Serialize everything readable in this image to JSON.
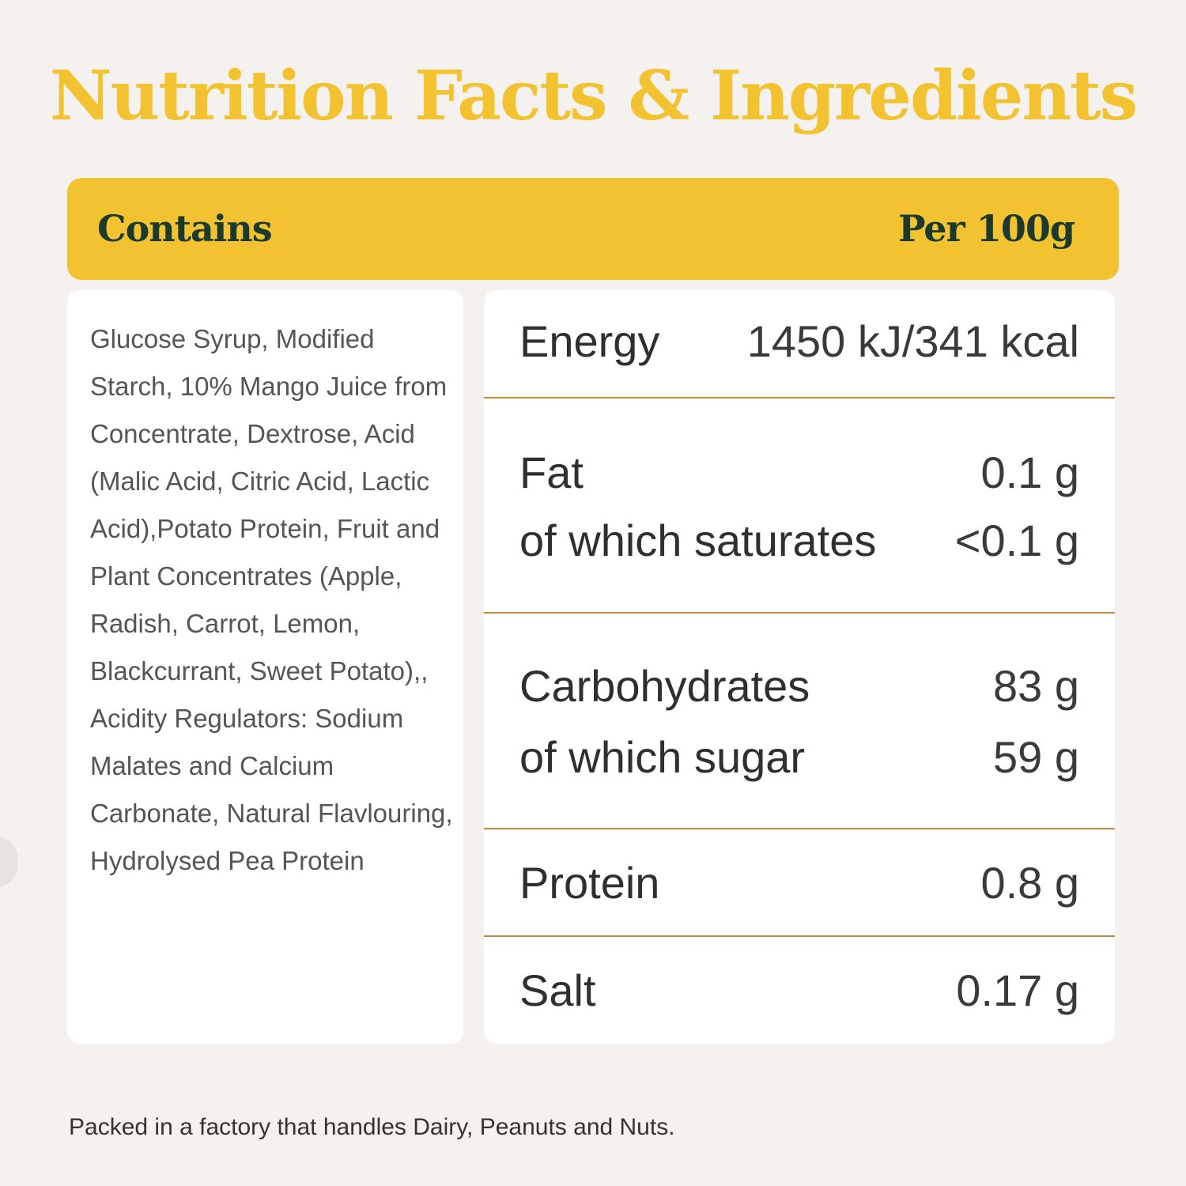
{
  "title": "Nutrition Facts & Ingredients",
  "header": {
    "left": "Contains",
    "right": "Per 100g"
  },
  "ingredients": "Glucose Syrup,  Modified Starch, 10% Mango Juice from Concentrate, Dextrose, Acid (Malic Acid, Citric Acid, Lactic Acid),Potato Protein, Fruit and Plant Concentrates (Apple, Radish, Carrot, Lemon, Blackcurrant, Sweet Potato),, Acidity Regulators: Sodium Malates and Calcium Carbonate, Natural Flavlouring, Hydrolysed Pea Protein",
  "nutrition": {
    "energy": {
      "label": "Energy",
      "value": "1450 kJ/341 kcal"
    },
    "fat": {
      "label": "Fat",
      "value": "0.1 g"
    },
    "saturates": {
      "label": "of which saturates",
      "value": "<0.1 g"
    },
    "carbohydrates": {
      "label": "Carbohydrates",
      "value": "83 g"
    },
    "sugar": {
      "label": "of which sugar",
      "value": "59 g"
    },
    "protein": {
      "label": "Protein",
      "value": "0.8 g"
    },
    "salt": {
      "label": "Salt",
      "value": "0.17 g"
    }
  },
  "footnote": "Packed in a factory that handles Dairy, Peanuts and Nuts.",
  "colors": {
    "accent": "#f2c230",
    "header_text": "#1c3a2b",
    "divider": "#c7893e",
    "background": "#f5f1ef"
  }
}
